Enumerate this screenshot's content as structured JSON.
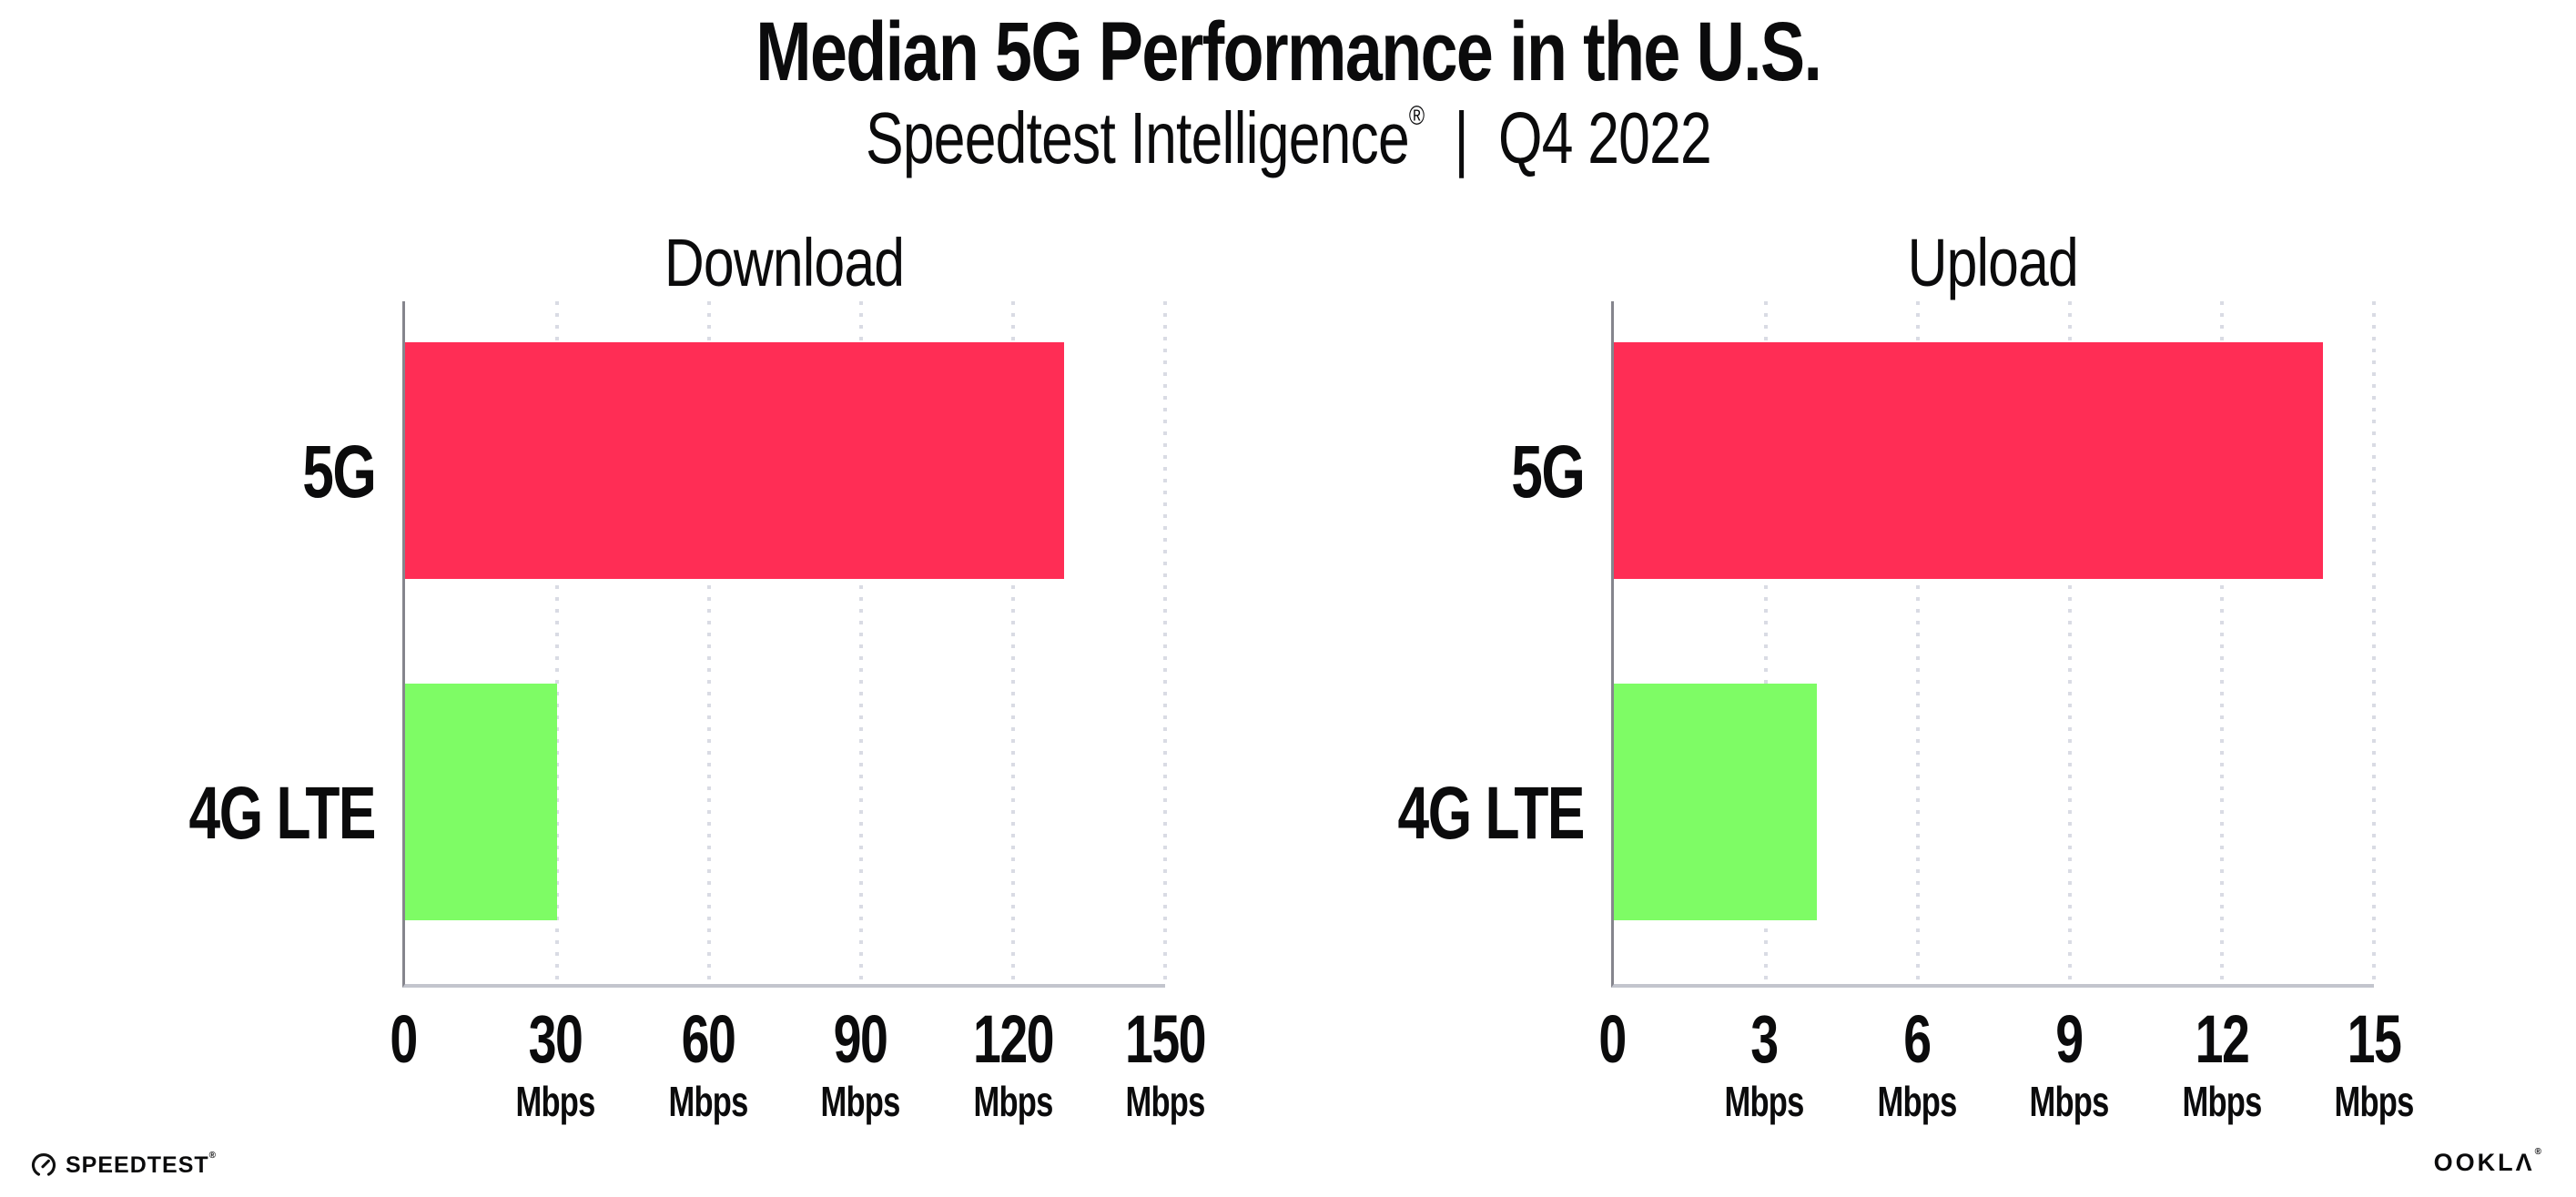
{
  "header": {
    "title": "Median 5G Performance in the U.S.",
    "subtitle_brand": "Speedtest Intelligence",
    "subtitle_reg": "®",
    "subtitle_sep": "|",
    "subtitle_period": "Q4 2022"
  },
  "chart_data": [
    {
      "type": "bar",
      "orientation": "horizontal",
      "title": "Download",
      "categories": [
        "5G",
        "4G LTE"
      ],
      "values": [
        130,
        30
      ],
      "unit": "Mbps",
      "xlim": [
        0,
        150
      ],
      "xticks": [
        0,
        30,
        60,
        90,
        120,
        150
      ],
      "bar_colors": [
        "#FF2D55",
        "#7EFC65"
      ],
      "gridlines": "dotted-vertical",
      "legend": "none"
    },
    {
      "type": "bar",
      "orientation": "horizontal",
      "title": "Upload",
      "categories": [
        "5G",
        "4G LTE"
      ],
      "values": [
        14,
        4
      ],
      "unit": "Mbps",
      "xlim": [
        0,
        15
      ],
      "xticks": [
        0,
        3,
        6,
        9,
        12,
        15
      ],
      "bar_colors": [
        "#FF2D55",
        "#7EFC65"
      ],
      "gridlines": "dotted-vertical",
      "legend": "none"
    }
  ],
  "colors": {
    "bar_5g": "#FF2D55",
    "bar_4g_lte": "#7EFC65",
    "axis_line": "#85858d",
    "baseline": "#c3c5cd",
    "gridline": "#d9dbe4",
    "text": "#0b0b0c"
  },
  "footer": {
    "speedtest_label": "SPEEDTEST",
    "speedtest_reg": "®",
    "ookla_label": "OOKLΛ",
    "ookla_reg": "®"
  }
}
